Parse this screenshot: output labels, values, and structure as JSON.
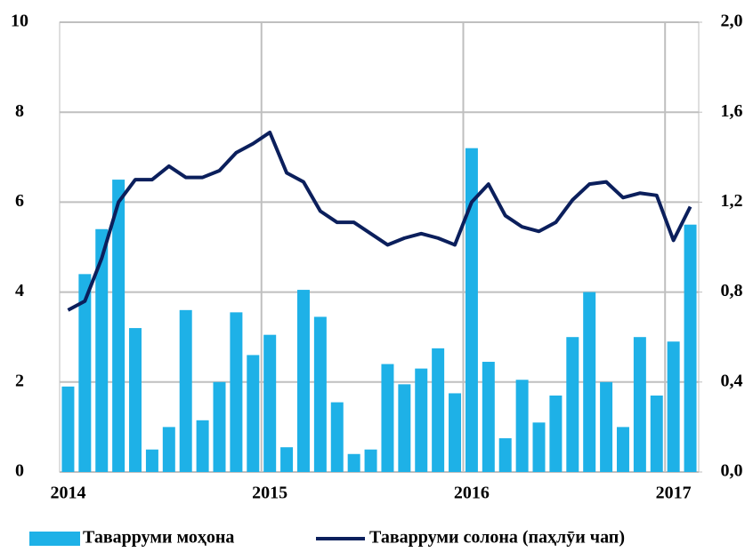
{
  "chart_data": {
    "type": "bar_line",
    "categories": [
      "2014",
      null,
      null,
      null,
      null,
      null,
      null,
      null,
      null,
      null,
      null,
      null,
      "2015",
      null,
      null,
      null,
      null,
      null,
      null,
      null,
      null,
      null,
      null,
      null,
      "2016",
      null,
      null,
      null,
      null,
      null,
      null,
      null,
      null,
      null,
      null,
      null,
      "2017",
      null
    ],
    "series": [
      {
        "name": "Таварруми моҳона",
        "type": "bar",
        "color": "#1eb1e7",
        "axis": "y",
        "values": [
          1.9,
          4.4,
          5.4,
          6.5,
          3.2,
          0.5,
          1.0,
          3.6,
          1.15,
          2.0,
          3.55,
          2.6,
          3.05,
          0.55,
          4.05,
          3.45,
          1.55,
          0.4,
          0.5,
          2.4,
          1.95,
          2.3,
          2.75,
          1.75,
          7.2,
          2.45,
          0.75,
          2.05,
          1.1,
          1.7,
          3.0,
          4.0,
          2.0,
          1.0,
          3.0,
          1.7,
          2.9,
          5.5
        ]
      },
      {
        "name": "Таварруми солона (паҳлӯи чап)",
        "type": "line",
        "color": "#0b1f5c",
        "axis": "y2",
        "values": [
          0.72,
          0.76,
          0.95,
          1.2,
          1.3,
          1.3,
          1.36,
          1.31,
          1.31,
          1.34,
          1.42,
          1.46,
          1.51,
          1.33,
          1.29,
          1.16,
          1.11,
          1.11,
          1.06,
          1.01,
          1.04,
          1.06,
          1.04,
          1.01,
          1.2,
          1.28,
          1.14,
          1.09,
          1.07,
          1.11,
          1.21,
          1.28,
          1.29,
          1.22,
          1.24,
          1.23,
          1.03,
          1.18
        ]
      }
    ],
    "ylim": [
      0,
      10
    ],
    "yticks": [
      0,
      2,
      4,
      6,
      8,
      10
    ],
    "y2lim": [
      0,
      2
    ],
    "y2ticks": [
      {
        "value": 0,
        "label": "0,0"
      },
      {
        "value": 0.4,
        "label": "0,4"
      },
      {
        "value": 0.8,
        "label": "0,8"
      },
      {
        "value": 1.2,
        "label": "1,2"
      },
      {
        "value": 1.6,
        "label": "1,6"
      },
      {
        "value": 2,
        "label": "2,0"
      }
    ],
    "grid": true,
    "legend": "bottom"
  }
}
